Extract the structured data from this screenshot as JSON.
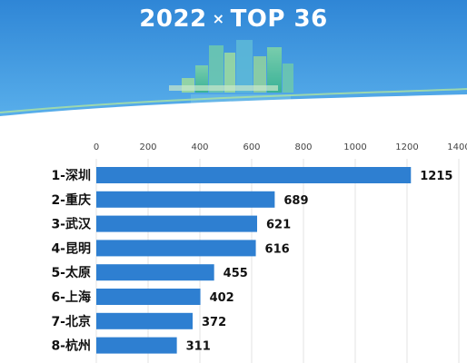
{
  "banner": {
    "year": "2022",
    "sep": "×",
    "top": "TOP 36"
  },
  "colors": {
    "bar": "#2e7fd1",
    "banner_top": "#2f86d6",
    "banner_bottom": "#5fb5ee"
  },
  "chart_data": {
    "type": "bar",
    "orientation": "horizontal",
    "categories": [
      "1-深圳",
      "2-重庆",
      "3-武汉",
      "4-昆明",
      "5-太原",
      "6-上海",
      "7-北京",
      "8-杭州"
    ],
    "values": [
      1215,
      689,
      621,
      616,
      455,
      402,
      372,
      311
    ],
    "value_labels": [
      "1215",
      "689",
      "621",
      "616",
      "455",
      "402",
      "372",
      "311"
    ],
    "xticks": [
      "0",
      "200",
      "400",
      "600",
      "800",
      "1000",
      "1200",
      "1400"
    ],
    "xlim": [
      0,
      1400
    ],
    "grid": true,
    "legend": "none"
  }
}
